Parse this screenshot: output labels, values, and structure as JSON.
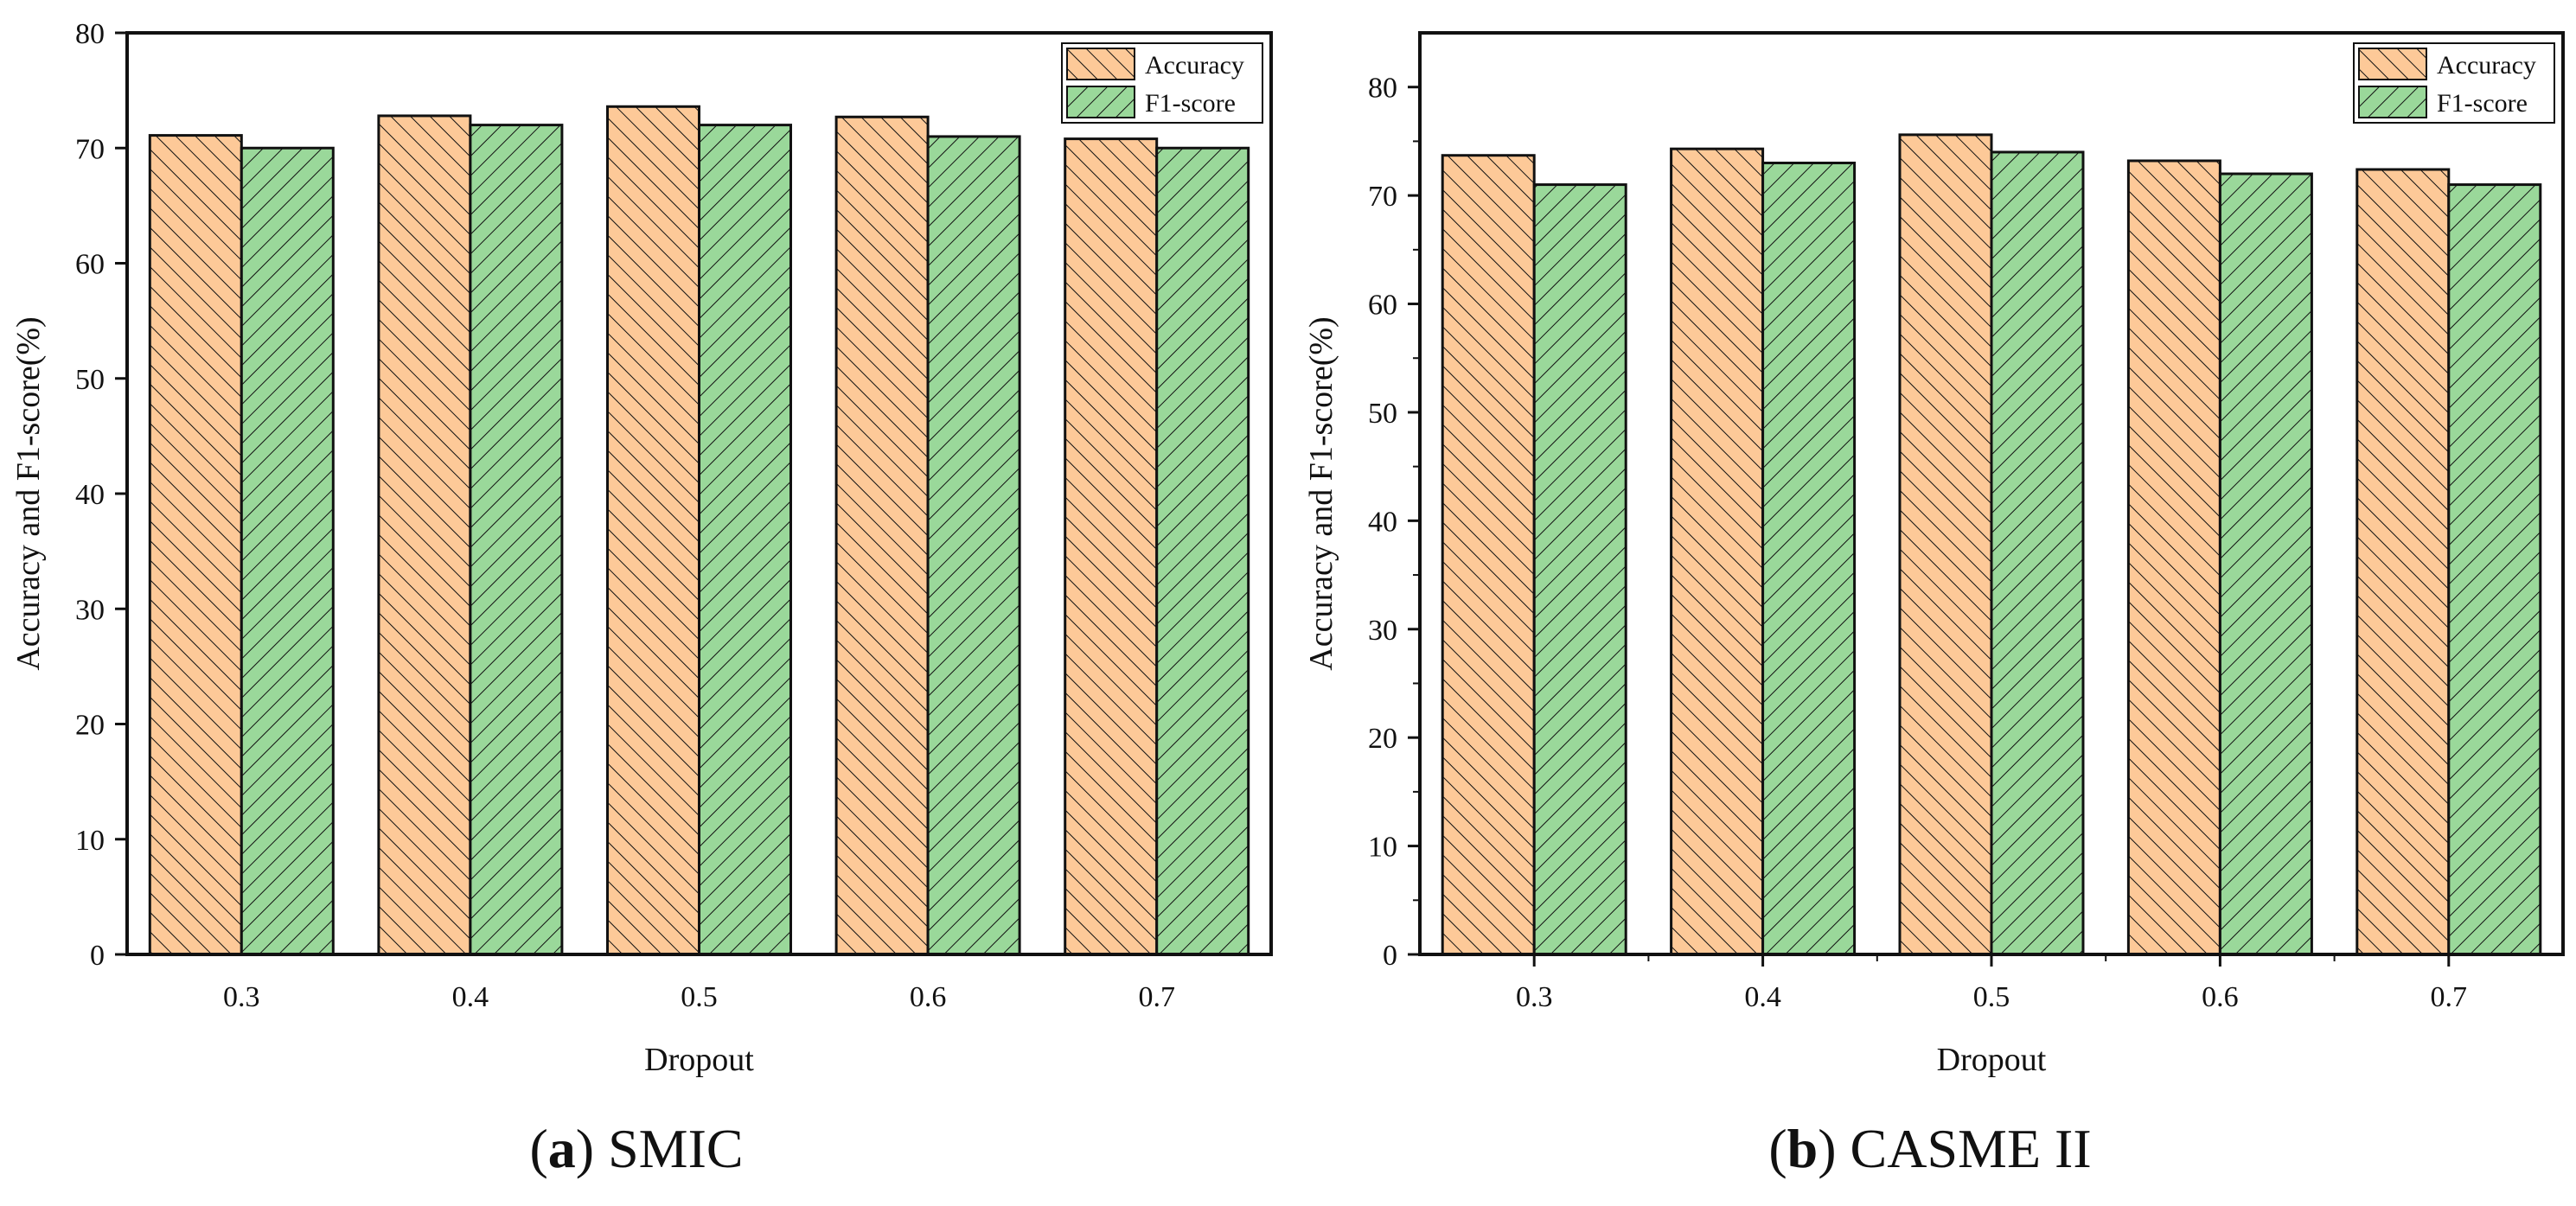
{
  "colors": {
    "accuracy_fill": "#FDC998",
    "f1_fill": "#9AD89A",
    "stroke": "#111111"
  },
  "chart_data": [
    {
      "type": "bar",
      "panel": "a",
      "caption_label": "(a)",
      "caption_letter": "a",
      "caption_text": "SMIC",
      "title": "",
      "xlabel": "Dropout",
      "ylabel": "Accuracy and F1-score(%)",
      "categories": [
        "0.3",
        "0.4",
        "0.5",
        "0.6",
        "0.7"
      ],
      "series": [
        {
          "name": "Accuracy",
          "values": [
            71.1,
            72.8,
            73.6,
            72.7,
            70.8
          ]
        },
        {
          "name": "F1-score",
          "values": [
            70.0,
            72.0,
            72.0,
            71.0,
            70.0
          ]
        }
      ],
      "ylim": [
        0,
        80
      ],
      "yticks": [
        0,
        10,
        20,
        30,
        40,
        50,
        60,
        70,
        80
      ],
      "legend": "top-right",
      "grid": false
    },
    {
      "type": "bar",
      "panel": "b",
      "caption_label": "(b)",
      "caption_letter": "b",
      "caption_text": "CASME II",
      "title": "",
      "xlabel": "Dropout",
      "ylabel": "Accuracy and F1-score(%)",
      "categories": [
        "0.3",
        "0.4",
        "0.5",
        "0.6",
        "0.7"
      ],
      "series": [
        {
          "name": "Accuracy",
          "values": [
            73.7,
            74.3,
            75.6,
            73.2,
            72.4
          ]
        },
        {
          "name": "F1-score",
          "values": [
            71.0,
            73.0,
            74.0,
            72.0,
            71.0
          ]
        }
      ],
      "ylim": [
        0,
        85
      ],
      "yticks": [
        0,
        10,
        20,
        30,
        40,
        50,
        60,
        70,
        80
      ],
      "legend": "top-right",
      "grid": false
    }
  ]
}
